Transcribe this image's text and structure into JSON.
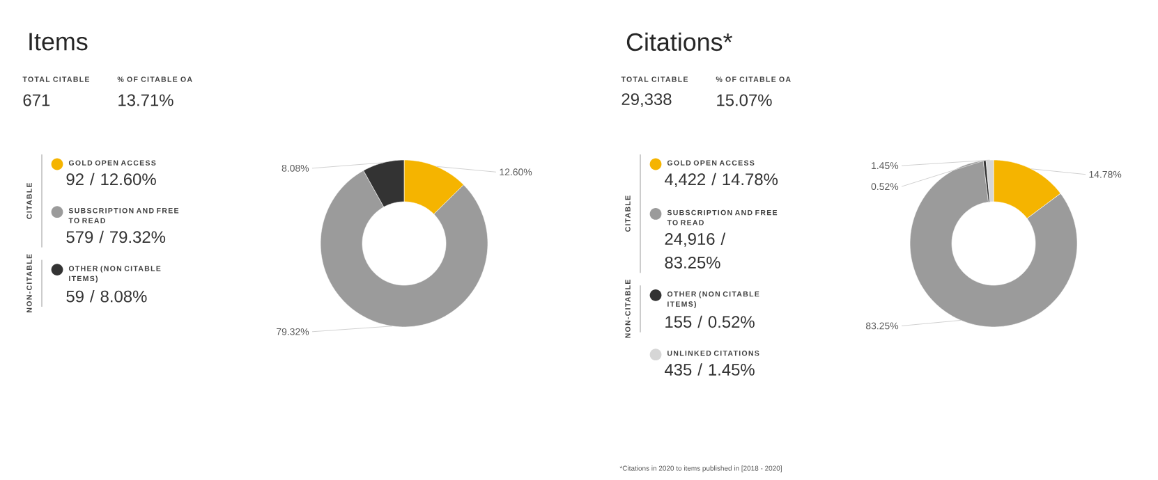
{
  "chart_data": [
    {
      "type": "donut",
      "title": "Items",
      "categories": [
        "GOLD OPEN ACCESS",
        "SUBSCRIPTION AND FREE TO READ",
        "OTHER (NON CITABLE ITEMS)"
      ],
      "values": [
        12.6,
        79.32,
        8.08
      ],
      "colors": [
        "#f5b400",
        "#9b9b9b",
        "#333333"
      ],
      "value_labels": [
        "12.60%",
        "79.32%",
        "8.08%"
      ],
      "legend": "left",
      "annotations": [
        "TOTAL CITABLE",
        "671",
        "% OF CITABLE OA",
        "13.71%",
        "CITABLE",
        "NON-CITABLE",
        "92 / 12.60%",
        "579 / 79.32%",
        "59 / 8.08%"
      ]
    },
    {
      "type": "donut",
      "title": "Citations*",
      "categories": [
        "GOLD OPEN ACCESS",
        "SUBSCRIPTION AND FREE TO READ",
        "OTHER (NON CITABLE ITEMS)",
        "UNLINKED CITATIONS"
      ],
      "values": [
        14.78,
        83.25,
        0.52,
        1.45
      ],
      "colors": [
        "#f5b400",
        "#9b9b9b",
        "#333333",
        "#d6d6d6"
      ],
      "value_labels": [
        "14.78%",
        "83.25%",
        "0.52%",
        "1.45%"
      ],
      "legend": "left",
      "annotations": [
        "TOTAL CITABLE",
        "29,338",
        "% OF CITABLE OA",
        "15.07%",
        "CITABLE",
        "NON-CITABLE",
        "4,422 / 14.78%",
        "24,916 / 83.25%",
        "155 / 0.52%",
        "435 / 1.45%",
        "*Citations in 2020 to items published in [2018 - 2020]"
      ]
    }
  ]
}
